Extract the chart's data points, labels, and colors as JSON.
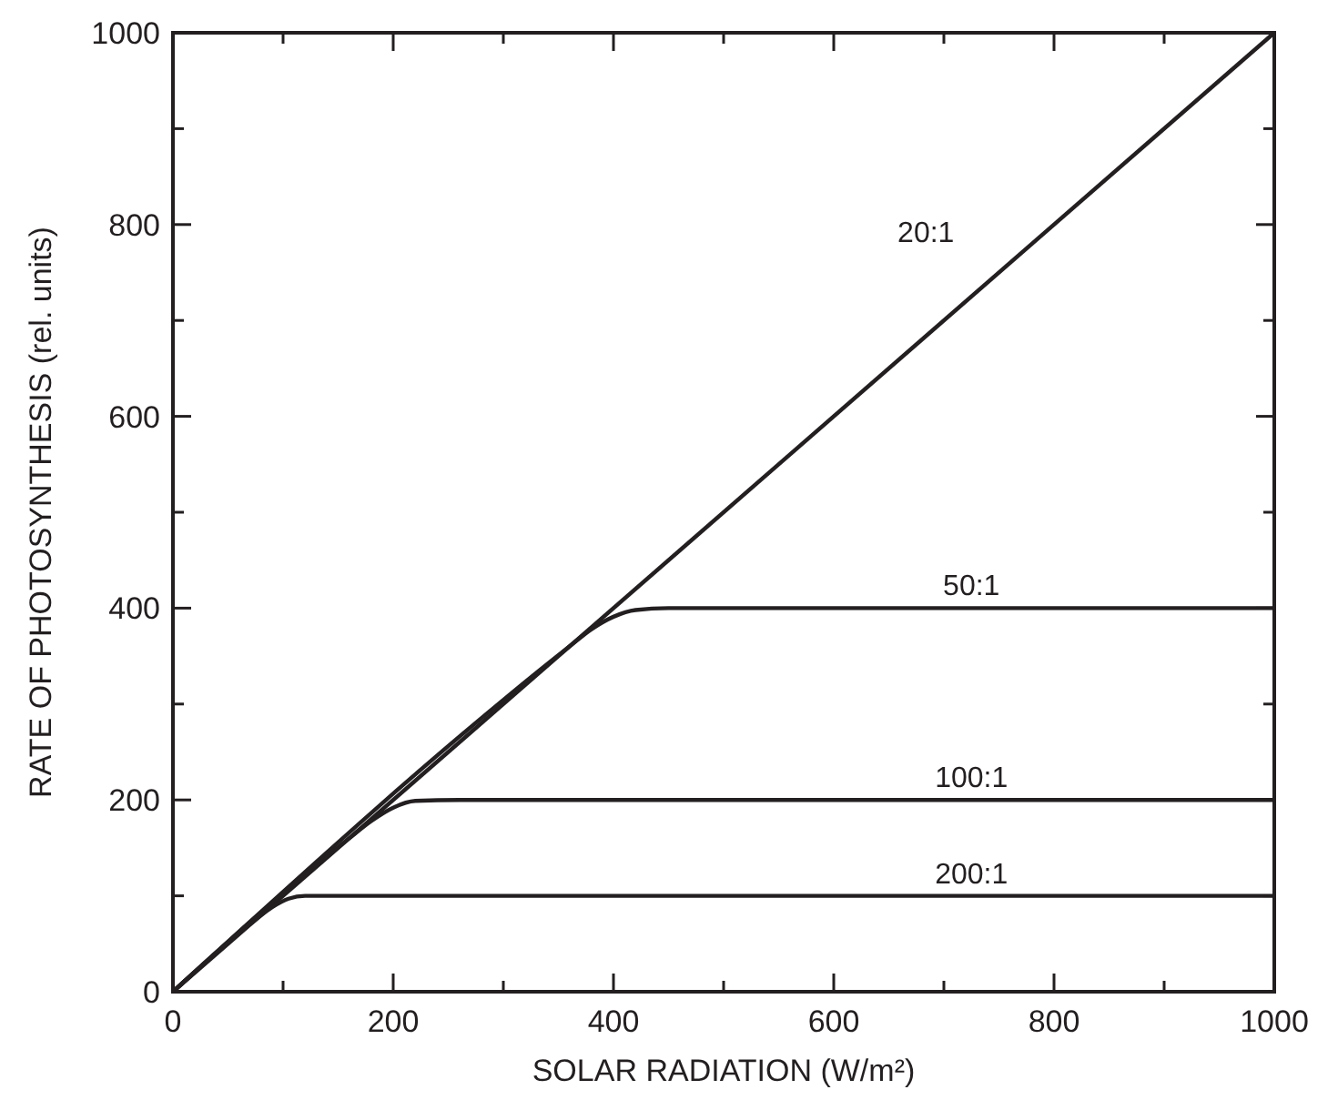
{
  "chart_data": {
    "type": "line",
    "xlabel": "SOLAR RADIATION (W/m²)",
    "ylabel": "RATE OF PHOTOSYNTHESIS (rel. units)",
    "xlim": [
      0,
      1000
    ],
    "ylim": [
      0,
      1000
    ],
    "xticks": [
      0,
      {
        "value": 100,
        "label": null
      },
      200,
      {
        "value": 300,
        "label": null
      },
      400,
      {
        "value": 500,
        "label": null
      },
      600,
      {
        "value": 700,
        "label": null
      },
      800,
      {
        "value": 900,
        "label": null
      },
      1000
    ],
    "yticks": [
      0,
      {
        "value": 100,
        "label": null
      },
      200,
      {
        "value": 300,
        "label": null
      },
      400,
      {
        "value": 500,
        "label": null
      },
      600,
      {
        "value": 700,
        "label": null
      },
      800,
      {
        "value": 900,
        "label": null
      },
      1000
    ],
    "grid": false,
    "marker": "none",
    "line_style": "solid",
    "series": [
      {
        "name": "20:1",
        "color": "#231f20",
        "x": [
          0,
          1000
        ],
        "values": [
          0,
          1000
        ]
      },
      {
        "name": "50:1",
        "color": "#231f20",
        "x": [
          0,
          360,
          380,
          400,
          420,
          450,
          1000
        ],
        "values": [
          0,
          360,
          378,
          391,
          398,
          400,
          400
        ]
      },
      {
        "name": "100:1",
        "color": "#231f20",
        "x": [
          0,
          160,
          180,
          200,
          220,
          260,
          1000
        ],
        "values": [
          0,
          160,
          178,
          192,
          199,
          200,
          200
        ]
      },
      {
        "name": "200:1",
        "color": "#231f20",
        "x": [
          0,
          75,
          90,
          105,
          120,
          1000
        ],
        "values": [
          0,
          75,
          88,
          97,
          100,
          100
        ]
      }
    ]
  }
}
